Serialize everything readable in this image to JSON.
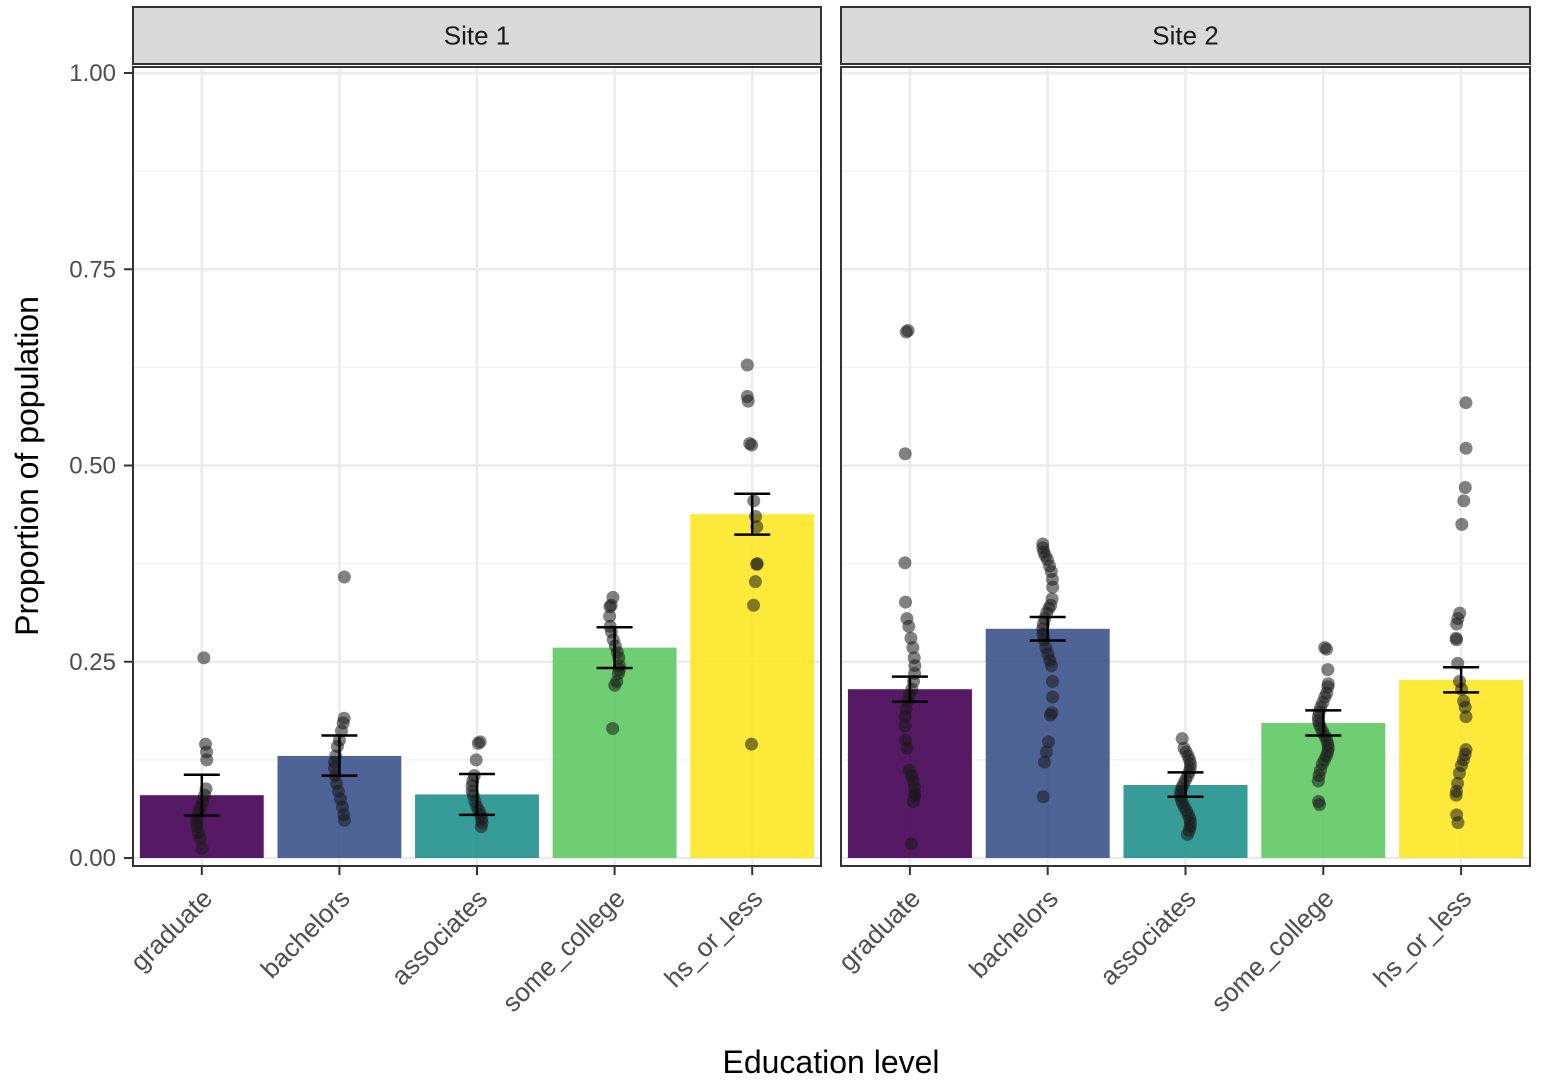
{
  "chart_data": {
    "type": "bar",
    "title": "",
    "xlabel": "Education level",
    "ylabel": "Proportion of population",
    "ylim": [
      0,
      1.0
    ],
    "yticks": [
      "0.00",
      "0.25",
      "0.50",
      "0.75",
      "1.00"
    ],
    "grid": true,
    "legend": "none",
    "categories": [
      "graduate",
      "bachelors",
      "associates",
      "some_college",
      "hs_or_less"
    ],
    "colors": [
      "#440154",
      "#3b528b",
      "#21908c",
      "#5ec962",
      "#fde725"
    ],
    "bar_opacity": 0.9,
    "point_color": "#1a1a1a",
    "facets": [
      {
        "name": "Site 1",
        "values": [
          0.08,
          0.13,
          0.081,
          0.268,
          0.438
        ],
        "errors": [
          [
            0.054,
            0.106
          ],
          [
            0.105,
            0.156
          ],
          [
            0.055,
            0.107
          ],
          [
            0.242,
            0.294
          ],
          [
            0.412,
            0.464
          ]
        ],
        "points": [
          [
            0.255,
            0.145,
            0.135,
            0.125,
            0.088,
            0.08,
            0.072,
            0.065,
            0.058,
            0.05,
            0.045,
            0.04,
            0.032,
            0.025,
            0.012
          ],
          [
            0.358,
            0.178,
            0.172,
            0.162,
            0.15,
            0.142,
            0.13,
            0.122,
            0.115,
            0.105,
            0.095,
            0.085,
            0.075,
            0.065,
            0.055,
            0.048
          ],
          [
            0.148,
            0.146,
            0.125,
            0.105,
            0.098,
            0.092,
            0.085,
            0.08,
            0.072,
            0.065,
            0.06,
            0.055,
            0.05,
            0.045,
            0.04
          ],
          [
            0.332,
            0.322,
            0.32,
            0.308,
            0.295,
            0.288,
            0.278,
            0.27,
            0.262,
            0.255,
            0.245,
            0.24,
            0.235,
            0.225,
            0.22,
            0.165
          ],
          [
            0.628,
            0.588,
            0.582,
            0.528,
            0.526,
            0.455,
            0.435,
            0.422,
            0.375,
            0.374,
            0.352,
            0.322,
            0.145
          ]
        ]
      },
      {
        "name": "Site 2",
        "values": [
          0.215,
          0.292,
          0.093,
          0.172,
          0.227
        ],
        "errors": [
          [
            0.199,
            0.231
          ],
          [
            0.277,
            0.307
          ],
          [
            0.078,
            0.109
          ],
          [
            0.156,
            0.188
          ],
          [
            0.211,
            0.243
          ]
        ],
        "points": [
          [
            0.672,
            0.67,
            0.515,
            0.376,
            0.326,
            0.305,
            0.295,
            0.28,
            0.268,
            0.255,
            0.245,
            0.235,
            0.225,
            0.215,
            0.208,
            0.2,
            0.19,
            0.18,
            0.168,
            0.15,
            0.14,
            0.112,
            0.105,
            0.098,
            0.09,
            0.082,
            0.078,
            0.072,
            0.018
          ],
          [
            0.4,
            0.395,
            0.39,
            0.385,
            0.38,
            0.372,
            0.365,
            0.355,
            0.345,
            0.33,
            0.322,
            0.318,
            0.312,
            0.305,
            0.298,
            0.292,
            0.285,
            0.278,
            0.268,
            0.26,
            0.252,
            0.245,
            0.225,
            0.205,
            0.185,
            0.182,
            0.148,
            0.135,
            0.122,
            0.078
          ],
          [
            0.152,
            0.14,
            0.135,
            0.13,
            0.125,
            0.12,
            0.115,
            0.11,
            0.105,
            0.1,
            0.095,
            0.09,
            0.085,
            0.08,
            0.075,
            0.07,
            0.065,
            0.06,
            0.055,
            0.05,
            0.045,
            0.04,
            0.035,
            0.03
          ],
          [
            0.268,
            0.266,
            0.24,
            0.222,
            0.218,
            0.21,
            0.205,
            0.198,
            0.192,
            0.186,
            0.18,
            0.175,
            0.17,
            0.165,
            0.16,
            0.155,
            0.15,
            0.145,
            0.14,
            0.135,
            0.13,
            0.125,
            0.12,
            0.112,
            0.105,
            0.098,
            0.072,
            0.068
          ],
          [
            0.58,
            0.522,
            0.472,
            0.455,
            0.425,
            0.312,
            0.305,
            0.298,
            0.28,
            0.278,
            0.248,
            0.225,
            0.215,
            0.2,
            0.192,
            0.18,
            0.138,
            0.132,
            0.125,
            0.118,
            0.108,
            0.095,
            0.085,
            0.08,
            0.055,
            0.045
          ]
        ]
      }
    ]
  }
}
